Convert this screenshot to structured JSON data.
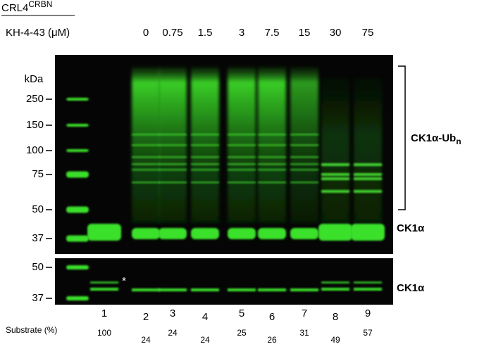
{
  "header": {
    "title": "CRL4",
    "title_superscript": "CRBN"
  },
  "treatment": {
    "label": "KH-4-43 (μM)",
    "concentrations": [
      0,
      0.75,
      1.5,
      3,
      7.5,
      15,
      30,
      75
    ]
  },
  "top_panel": {
    "unit": "kDa",
    "markers": [
      250,
      150,
      100,
      75,
      50,
      37
    ],
    "bracket_label": "CK1α-Ub",
    "bracket_label_subscript": "n",
    "band_label": "CK1α"
  },
  "bottom_panel": {
    "markers": [
      50,
      37
    ],
    "band_label": "CK1α",
    "asterisk": "*"
  },
  "lanes": [
    1,
    2,
    3,
    4,
    5,
    6,
    7,
    8,
    9
  ],
  "substrate": {
    "label": "Substrate (%)",
    "values": [
      100,
      24,
      24,
      24,
      25,
      26,
      31,
      49,
      57
    ]
  }
}
